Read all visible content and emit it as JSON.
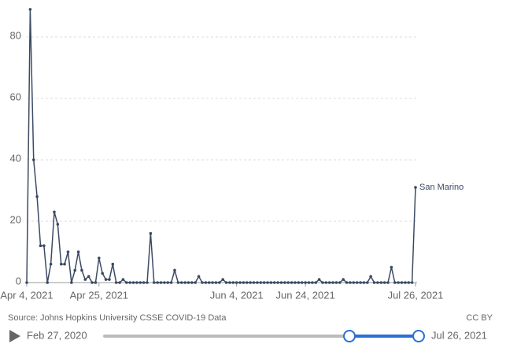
{
  "chart_data": {
    "type": "line",
    "x": [
      "2021-04-04",
      "2021-04-05",
      "2021-04-06",
      "2021-04-07",
      "2021-04-08",
      "2021-04-09",
      "2021-04-10",
      "2021-04-11",
      "2021-04-12",
      "2021-04-13",
      "2021-04-14",
      "2021-04-15",
      "2021-04-16",
      "2021-04-17",
      "2021-04-18",
      "2021-04-19",
      "2021-04-20",
      "2021-04-21",
      "2021-04-22",
      "2021-04-23",
      "2021-04-24",
      "2021-04-25",
      "2021-04-26",
      "2021-04-27",
      "2021-04-28",
      "2021-04-29",
      "2021-04-30",
      "2021-05-01",
      "2021-05-02",
      "2021-05-03",
      "2021-05-04",
      "2021-05-05",
      "2021-05-06",
      "2021-05-07",
      "2021-05-08",
      "2021-05-09",
      "2021-05-10",
      "2021-05-11",
      "2021-05-12",
      "2021-05-13",
      "2021-05-14",
      "2021-05-15",
      "2021-05-16",
      "2021-05-17",
      "2021-05-18",
      "2021-05-19",
      "2021-05-20",
      "2021-05-21",
      "2021-05-22",
      "2021-05-23",
      "2021-05-24",
      "2021-05-25",
      "2021-05-26",
      "2021-05-27",
      "2021-05-28",
      "2021-05-29",
      "2021-05-30",
      "2021-05-31",
      "2021-06-01",
      "2021-06-02",
      "2021-06-03",
      "2021-06-04",
      "2021-06-05",
      "2021-06-06",
      "2021-06-07",
      "2021-06-08",
      "2021-06-09",
      "2021-06-10",
      "2021-06-11",
      "2021-06-12",
      "2021-06-13",
      "2021-06-14",
      "2021-06-15",
      "2021-06-16",
      "2021-06-17",
      "2021-06-18",
      "2021-06-19",
      "2021-06-20",
      "2021-06-21",
      "2021-06-22",
      "2021-06-23",
      "2021-06-24",
      "2021-06-25",
      "2021-06-26",
      "2021-06-27",
      "2021-06-28",
      "2021-06-29",
      "2021-06-30",
      "2021-07-01",
      "2021-07-02",
      "2021-07-03",
      "2021-07-04",
      "2021-07-05",
      "2021-07-06",
      "2021-07-07",
      "2021-07-08",
      "2021-07-09",
      "2021-07-10",
      "2021-07-11",
      "2021-07-12",
      "2021-07-13",
      "2021-07-14",
      "2021-07-15",
      "2021-07-16",
      "2021-07-17",
      "2021-07-18",
      "2021-07-19",
      "2021-07-20",
      "2021-07-21",
      "2021-07-22",
      "2021-07-23",
      "2021-07-24",
      "2021-07-25",
      "2021-07-26"
    ],
    "series": [
      {
        "name": "San Marino",
        "color": "#3b4a63",
        "values": [
          0,
          89,
          40,
          28,
          12,
          12,
          0,
          6,
          23,
          19,
          6,
          6,
          10,
          0,
          4,
          10,
          4,
          1,
          2,
          0,
          0,
          8,
          3,
          1,
          1,
          6,
          0,
          0,
          1,
          0,
          0,
          0,
          0,
          0,
          0,
          0,
          16,
          0,
          0,
          0,
          0,
          0,
          0,
          4,
          0,
          0,
          0,
          0,
          0,
          0,
          2,
          0,
          0,
          0,
          0,
          0,
          0,
          1,
          0,
          0,
          0,
          0,
          0,
          0,
          0,
          0,
          0,
          0,
          0,
          0,
          0,
          0,
          0,
          0,
          0,
          0,
          0,
          0,
          0,
          0,
          0,
          0,
          0,
          0,
          0,
          1,
          0,
          0,
          0,
          0,
          0,
          0,
          1,
          0,
          0,
          0,
          0,
          0,
          0,
          0,
          2,
          0,
          0,
          0,
          0,
          0,
          5,
          0,
          0,
          0,
          0,
          0,
          0,
          31
        ]
      }
    ],
    "xlim": [
      "2021-04-04",
      "2021-07-26"
    ],
    "xticks": [
      {
        "value": "2021-04-04",
        "label": "Apr 4, 2021"
      },
      {
        "value": "2021-04-25",
        "label": "Apr 25, 2021"
      },
      {
        "value": "2021-06-04",
        "label": "Jun 4, 2021"
      },
      {
        "value": "2021-06-24",
        "label": "Jun 24, 2021"
      },
      {
        "value": "2021-07-26",
        "label": "Jul 26, 2021"
      }
    ],
    "ylim": [
      0,
      90
    ],
    "yticks": [
      0,
      20,
      40,
      60,
      80
    ],
    "grid": true,
    "source": "Source: Johns Hopkins University CSSE COVID-19 Data",
    "license": "CC BY",
    "timeline_start": "Feb 27, 2020",
    "timeline_end": "Jul 26, 2021"
  }
}
